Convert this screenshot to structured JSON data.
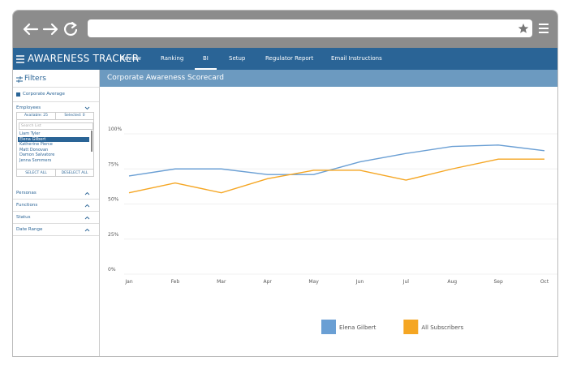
{
  "nav": {
    "title": "AWARENESS TRACKER",
    "tabs": [
      "Review",
      "Ranking",
      "BI",
      "Setup",
      "Regulator Report",
      "Email Instructions"
    ],
    "active_tab": 2
  },
  "sidebar": {
    "title": "Filters",
    "corporate_average": "Corporate Average",
    "employees": {
      "title": "Employees",
      "available": "Available: 25",
      "selected": "Selected: 0",
      "search_placeholder": "Search List",
      "list": [
        "Liam Tyler",
        "Elena Gilbert",
        "Katherine Pierce",
        "Matt Donovan",
        "Damon Salvatore",
        "Jenna Sommers"
      ],
      "selected_item": 1,
      "select_all": "SELECT ALL",
      "deselect_all": "DESELECT ALL"
    },
    "sections": [
      "Personas",
      "Functions",
      "Status",
      "Date Range"
    ]
  },
  "panel_title": "Corporate Awareness Scorecard",
  "chart_data": {
    "type": "line",
    "categories": [
      "Jan",
      "Feb",
      "Mar",
      "Apr",
      "May",
      "Jun",
      "Jul",
      "Aug",
      "Sep",
      "Oct"
    ],
    "series": [
      {
        "name": "Elena Gilbert",
        "color": "#6a9fd4",
        "values": [
          70,
          75,
          75,
          71,
          71,
          80,
          86,
          91,
          92,
          88
        ]
      },
      {
        "name": "All Subscribers",
        "color": "#f5a623",
        "values": [
          58,
          65,
          58,
          68,
          74,
          74,
          67,
          75,
          82,
          82
        ]
      }
    ],
    "ylim": [
      0,
      100
    ],
    "yticks": [
      {
        "value": 0,
        "label": "0%"
      },
      {
        "value": 25,
        "label": "25%"
      },
      {
        "value": 50,
        "label": "50%"
      },
      {
        "value": 75,
        "label": "75%"
      },
      {
        "value": 100,
        "label": "100%"
      }
    ],
    "grid": true,
    "legend": "bottom"
  }
}
